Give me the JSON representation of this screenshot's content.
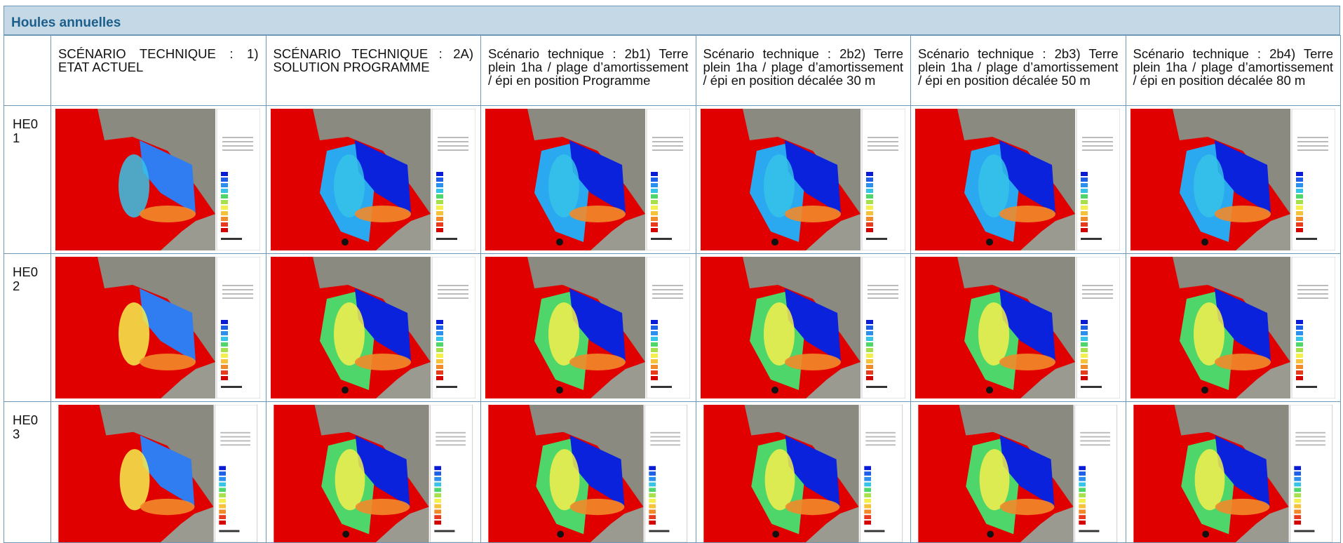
{
  "header": {
    "title": "Houles annuelles"
  },
  "table": {
    "columns": [
      "SCÉNARIO TECHNIQUE : 1) ETAT ACTUEL",
      "SCÉNARIO TECHNIQUE : 2A) SOLUTION PROGRAMME",
      "Scénario technique : 2b1) Terre plein 1ha / plage d’amortissement / épi en position Programme",
      "Scénario technique : 2b2) Terre plein 1ha / plage d’amortissement / épi en position décalée 30 m",
      "Scénario technique : 2b3) Terre plein 1ha / plage d’amortissement / épi en position décalée 50 m",
      "Scénario technique : 2b4) Terre plein 1ha / plage d’amortissement / épi en position décalée 80 m"
    ],
    "rows": [
      "HE01",
      "HE02",
      "HE03"
    ]
  }
}
